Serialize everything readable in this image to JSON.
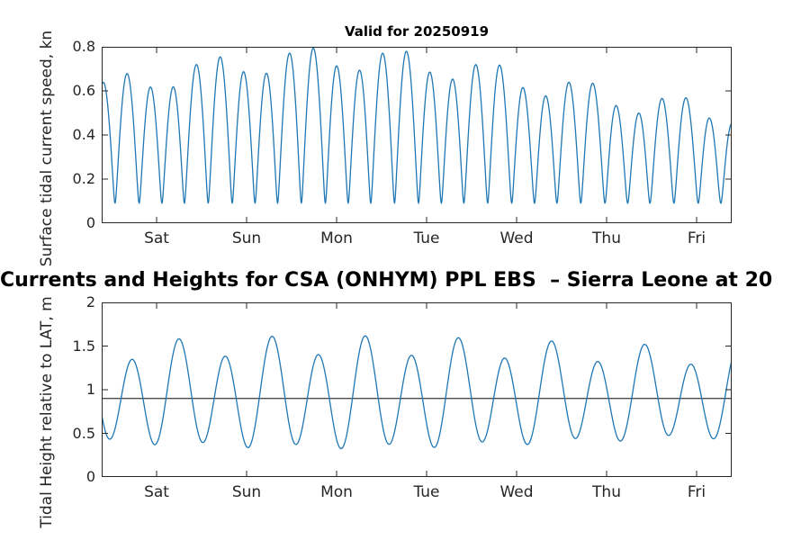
{
  "figure": {
    "main_title": "Currents and Heights for CSA (ONHYM) PPL EBS  – Sierra Leone at 20",
    "axis_color": "#262626",
    "background": "#ffffff"
  },
  "chart_data": [
    {
      "id": "surface-current-speed",
      "type": "line",
      "title": "Valid for 20250919",
      "ylabel": "Surface tidal current speed, kn",
      "x_tick_labels": [
        "Sat",
        "Sun",
        "Mon",
        "Tue",
        "Wed",
        "Thu",
        "Fri"
      ],
      "x_tick_days": [
        0.61,
        1.61,
        2.61,
        3.61,
        4.61,
        5.61,
        6.61
      ],
      "y_ticks": [
        "0",
        "0.2",
        "0.4",
        "0.6",
        "0.8"
      ],
      "y_tick_values": [
        0,
        0.2,
        0.4,
        0.6,
        0.8
      ],
      "ylim": [
        0,
        0.8
      ],
      "xlim_days": [
        0,
        7
      ],
      "grid": false,
      "box": true,
      "tick_direction": "in",
      "line_color": "#1f77b4",
      "line_width": 1.3,
      "samples_per_day": 200,
      "observed": {
        "peaks_per_day": 4,
        "peak_speed_range_kn": [
          0.48,
          0.8
        ],
        "minimum_speed_range_kn": [
          0.09,
          0.15
        ],
        "envelope": "peaks ~0.66-0.68 Fri/Sat, rising to ~0.80 Sun-Wed, declining to ~0.48-0.65 by Fri"
      },
      "series_model": {
        "kind": "speed",
        "main_period_days": 0.5175,
        "main_phase_days": -0.109,
        "amp_base": 0.615,
        "spring_neap": {
          "amplitude": 0.125,
          "period_days": 9.6,
          "phase_days": 0.2
        },
        "diurnal": {
          "amplitude": 0.06,
          "period_days": 1.0357,
          "phase_days": 0.631
        },
        "residual_floor": 0.09
      }
    },
    {
      "id": "tidal-height",
      "type": "line",
      "title": "",
      "ylabel": "Tidal Height relative to LAT, m",
      "x_tick_labels": [
        "Sat",
        "Sun",
        "Mon",
        "Tue",
        "Wed",
        "Thu",
        "Fri"
      ],
      "x_tick_days": [
        0.61,
        1.61,
        2.61,
        3.61,
        4.61,
        5.61,
        6.61
      ],
      "y_ticks": [
        "0",
        "0.5",
        "1",
        "1.5",
        "2"
      ],
      "y_tick_values": [
        0,
        0.5,
        1,
        1.5,
        2
      ],
      "ylim": [
        0,
        2
      ],
      "xlim_days": [
        0,
        7
      ],
      "grid": false,
      "box": true,
      "tick_direction": "in",
      "line_color": "#1f77b4",
      "line_width": 1.3,
      "samples_per_day": 200,
      "mean_line": {
        "value": 0.9,
        "color": "#4d4d4d",
        "width": 1.3
      },
      "observed": {
        "peaks_per_day": 2,
        "high_water_range_m": [
          1.35,
          1.65
        ],
        "low_water_range_m": [
          0.25,
          0.45
        ],
        "mean_level_m": 0.9,
        "envelope": "alternating highs ~1.40/1.62 early week, ~1.45-1.50 by Fri"
      },
      "series_model": {
        "kind": "height",
        "mean": 0.93,
        "main_period_days": 0.5175,
        "main_phase_days": 0.21,
        "amp_base": 0.52,
        "spring_neap": {
          "amplitude": 0.06,
          "period_days": 9.6,
          "phase_days": 0.2
        },
        "diurnal": {
          "amplitude": 0.11,
          "period_days": 1.0357,
          "phase_days": 0.631
        }
      }
    }
  ]
}
